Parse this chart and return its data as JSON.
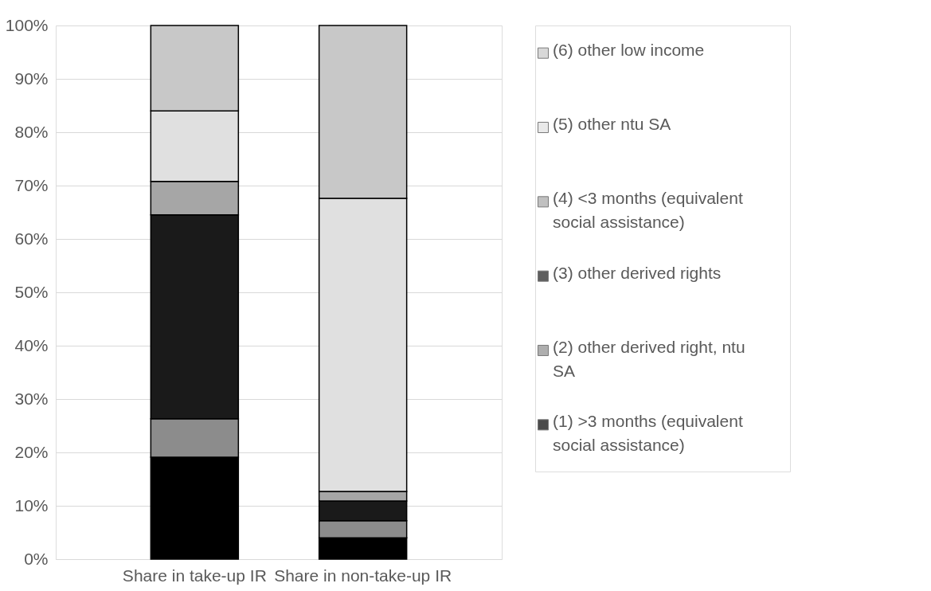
{
  "chart_data": {
    "type": "bar",
    "stacked": true,
    "categories": [
      "Share in take-up IR",
      "Share in non-take-up IR"
    ],
    "series": [
      {
        "name": "(1) >3 months (equivalent social assistance)",
        "color": "#000000",
        "values": [
          19.1,
          4.0
        ]
      },
      {
        "name": "(2) other derived right, ntu SA",
        "color": "#8c8c8c",
        "values": [
          7.2,
          3.2
        ]
      },
      {
        "name": "(3) other derived rights",
        "color": "#1a1a1a",
        "values": [
          38.2,
          3.7
        ]
      },
      {
        "name": "(4) <3 months (equivalent social assistance)",
        "color": "#a6a6a6",
        "values": [
          6.3,
          1.8
        ]
      },
      {
        "name": "(5) other ntu SA",
        "color": "#e0e0e0",
        "values": [
          13.2,
          54.9
        ]
      },
      {
        "name": "(6) other low income",
        "color": "#c8c8c8",
        "values": [
          16.0,
          32.4
        ]
      }
    ],
    "ylim": [
      0,
      100
    ],
    "yticks": [
      {
        "value": 0,
        "label": "0%"
      },
      {
        "value": 10,
        "label": "10%"
      },
      {
        "value": 20,
        "label": "20%"
      },
      {
        "value": 30,
        "label": "30%"
      },
      {
        "value": 40,
        "label": "40%"
      },
      {
        "value": 50,
        "label": "50%"
      },
      {
        "value": 60,
        "label": "60%"
      },
      {
        "value": 70,
        "label": "70%"
      },
      {
        "value": 80,
        "label": "80%"
      },
      {
        "value": 90,
        "label": "90%"
      },
      {
        "value": 100,
        "label": "100%"
      }
    ],
    "grid": "y",
    "legend": "right"
  }
}
